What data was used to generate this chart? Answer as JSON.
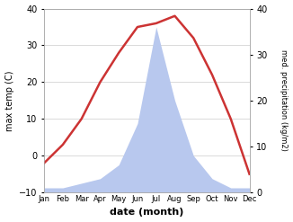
{
  "months": [
    "Jan",
    "Feb",
    "Mar",
    "Apr",
    "May",
    "Jun",
    "Jul",
    "Aug",
    "Sep",
    "Oct",
    "Nov",
    "Dec"
  ],
  "month_positions": [
    1,
    2,
    3,
    4,
    5,
    6,
    7,
    8,
    9,
    10,
    11,
    12
  ],
  "temperature": [
    -2,
    3,
    10,
    20,
    28,
    35,
    36,
    38,
    32,
    22,
    10,
    -5
  ],
  "precipitation": [
    1,
    1,
    2,
    3,
    6,
    15,
    36,
    20,
    8,
    3,
    1,
    1
  ],
  "temp_color": "#cc3333",
  "precip_color": "#b8c8ee",
  "ylabel_left": "max temp (C)",
  "ylabel_right": "med. precipitation (kg/m2)",
  "xlabel": "date (month)",
  "ylim_left": [
    -10,
    40
  ],
  "ylim_right": [
    0,
    40
  ],
  "yticks_left": [
    -10,
    0,
    10,
    20,
    30,
    40
  ],
  "yticks_right": [
    0,
    10,
    20,
    30,
    40
  ],
  "background_color": "#ffffff",
  "line_width": 1.8
}
